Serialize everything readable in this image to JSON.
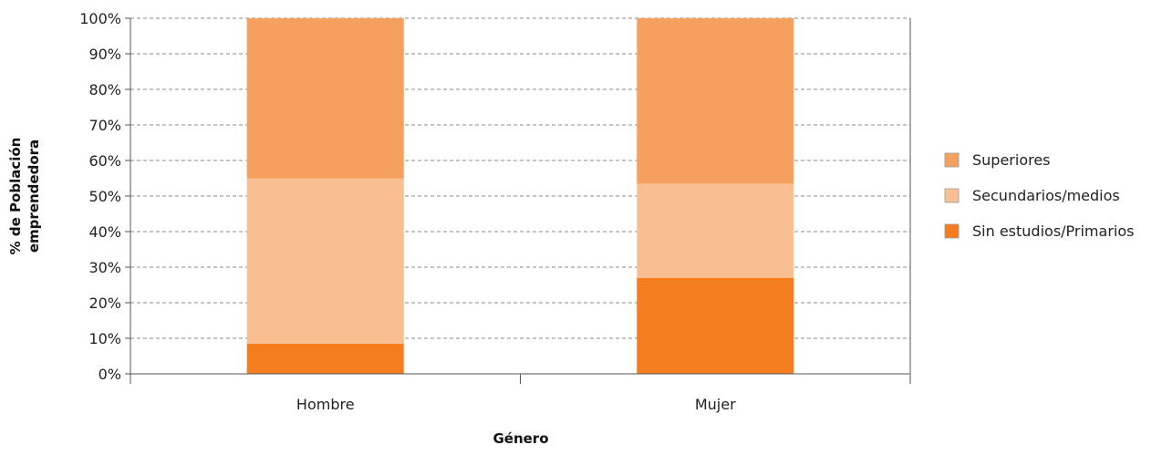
{
  "chart_data": {
    "type": "bar",
    "stacked": true,
    "percent": true,
    "categories": [
      "Hombre",
      "Mujer"
    ],
    "series": [
      {
        "name": "Sin estudios/Primarios",
        "values": [
          8.5,
          27
        ],
        "color": "#F47D20"
      },
      {
        "name": "Secundarios/medios",
        "values": [
          46.5,
          26.5
        ],
        "color": "#F9BF91"
      },
      {
        "name": "Superiores",
        "values": [
          45,
          46.5
        ],
        "color": "#F5A05E"
      }
    ],
    "legend_order": [
      "Superiores",
      "Secundarios/medios",
      "Sin estudios/Primarios"
    ],
    "legend_position": "right",
    "xlabel": "Género",
    "ylabel_lines": [
      "% de Población",
      "emprendedora"
    ],
    "ylim": [
      0,
      100
    ],
    "yticks": [
      "0%",
      "10%",
      "20%",
      "30%",
      "40%",
      "50%",
      "60%",
      "70%",
      "80%",
      "90%",
      "100%"
    ],
    "grid": true,
    "grid_style": "dashed"
  }
}
